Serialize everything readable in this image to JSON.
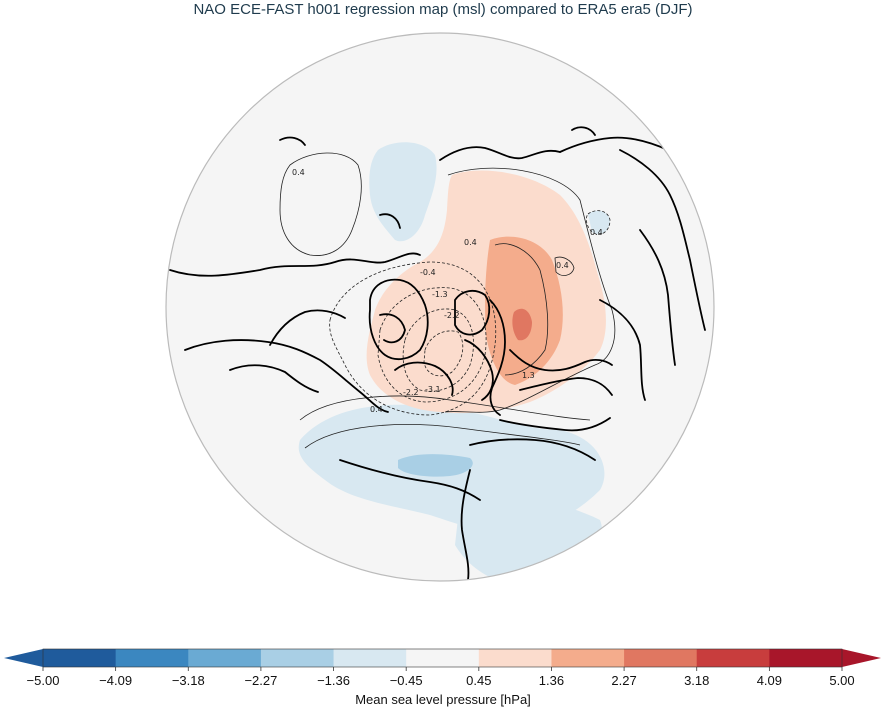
{
  "title": "NAO ECE-FAST h001 regression map (msl) compared to ERA5 era5 (DJF)",
  "colorbar": {
    "label": "Mean sea level pressure [hPa]",
    "ticks": [
      "−5.00",
      "−4.09",
      "−3.18",
      "−2.27",
      "−1.36",
      "−0.45",
      "0.45",
      "1.36",
      "2.27",
      "3.18",
      "4.09",
      "5.00"
    ],
    "colors": [
      "#1f5b9c",
      "#3b87c0",
      "#6aaad3",
      "#a9cfe5",
      "#d8e8f1",
      "#f5f5f5",
      "#fbdccd",
      "#f4ac8c",
      "#e07761",
      "#c83d3d",
      "#a8162a"
    ],
    "under_color": "#1f5b9c",
    "over_color": "#a8162a"
  },
  "map": {
    "projection": "north-polar-stereographic",
    "background_color": "#f5f5f5",
    "contour_labels": [
      "0.4",
      "0.4",
      "0.4",
      "0.4",
      "-0.4",
      "-1.3",
      "-2.2",
      "-2.2",
      "-3.1",
      "1.3",
      "0.4"
    ]
  }
}
